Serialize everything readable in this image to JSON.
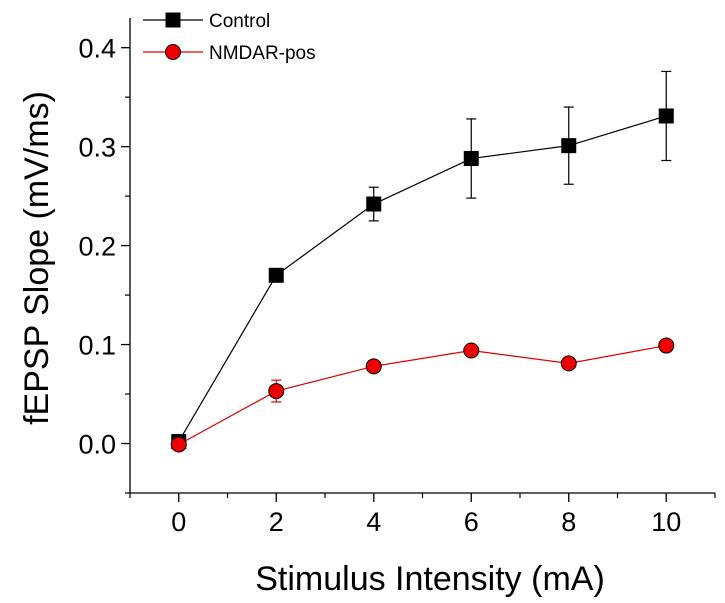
{
  "chart_data": {
    "type": "line",
    "title": "",
    "xlabel": "Stimulus Intensity (mA)",
    "ylabel": "fEPSP Slope (mV/ms)",
    "xlim": [
      -1,
      11
    ],
    "ylim": [
      -0.05,
      0.43
    ],
    "x_ticks": [
      0,
      2,
      4,
      6,
      8,
      10
    ],
    "x_tick_labels": [
      "0",
      "2",
      "4",
      "6",
      "8",
      "10"
    ],
    "y_ticks": [
      0.0,
      0.1,
      0.2,
      0.3,
      0.4
    ],
    "y_tick_labels": [
      "0.0",
      "0.1",
      "0.2",
      "0.3",
      "0.4"
    ],
    "grid": false,
    "legend_position": "top-left",
    "x": [
      0,
      2,
      4,
      6,
      8,
      10
    ],
    "series": [
      {
        "name": "Control",
        "marker": "square",
        "color": "#000000",
        "marker_fill": "#000000",
        "values": [
          0.002,
          0.17,
          0.242,
          0.288,
          0.301,
          0.331
        ],
        "errors": [
          0.0,
          0.0,
          0.017,
          0.04,
          0.039,
          0.045
        ]
      },
      {
        "name": "NMDAR-pos",
        "marker": "circle",
        "color": "#e00000",
        "marker_fill": "#ee0000",
        "values": [
          -0.001,
          0.053,
          0.078,
          0.094,
          0.081,
          0.099
        ],
        "errors": [
          0.0,
          0.011,
          0.0,
          0.0,
          0.0,
          0.0
        ]
      }
    ]
  }
}
